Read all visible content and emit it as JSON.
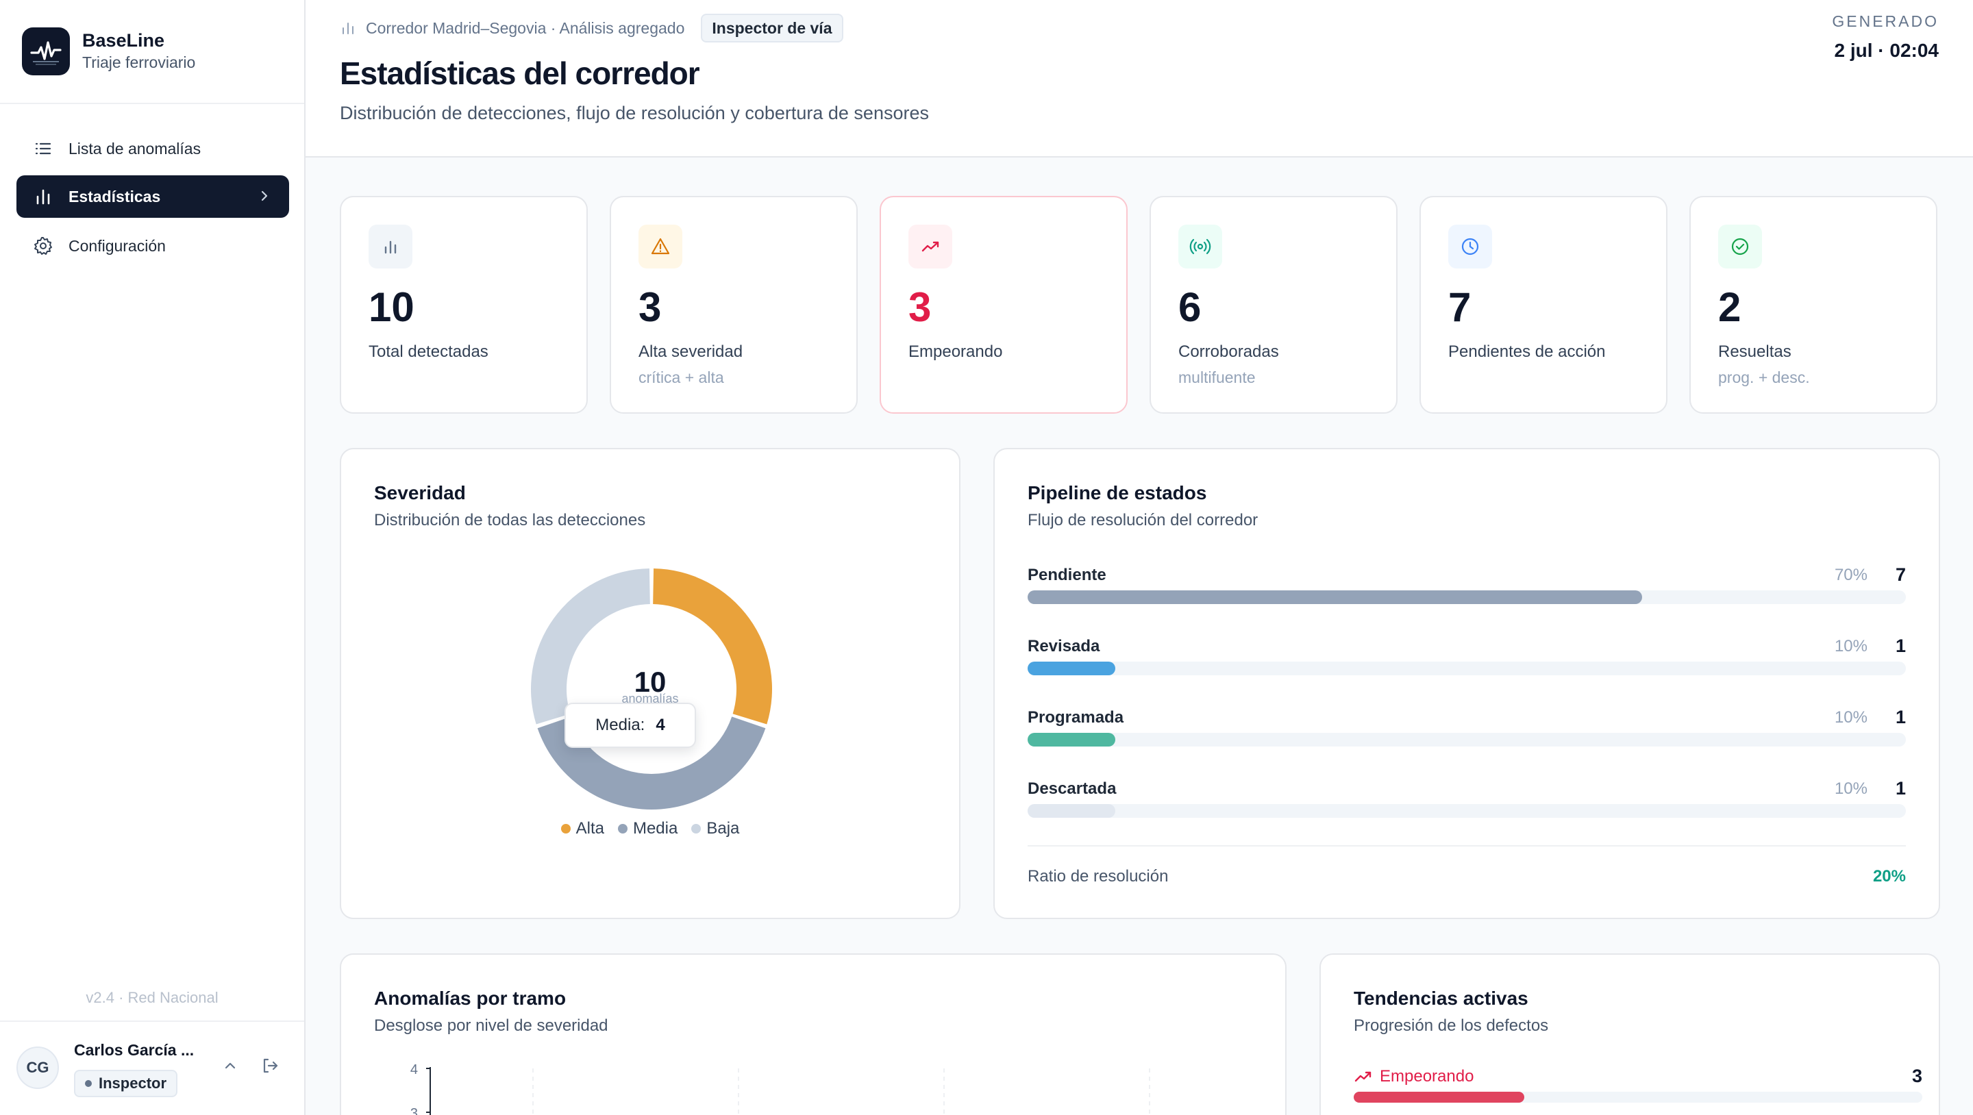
{
  "brand": {
    "title": "BaseLine",
    "subtitle": "Triaje ferroviario"
  },
  "nav": {
    "items": [
      {
        "label": "Lista de anomalías",
        "icon": "list-icon"
      },
      {
        "label": "Estadísticas",
        "icon": "bar-chart-icon",
        "active": true
      },
      {
        "label": "Configuración",
        "icon": "gear-icon"
      }
    ]
  },
  "sidebar": {
    "version": "v2.4 · Red Nacional"
  },
  "user": {
    "initials": "CG",
    "name": "Carlos García ...",
    "role": "Inspector"
  },
  "header": {
    "breadcrumb": "Corredor Madrid–Segovia · Análisis agregado",
    "badge": "Inspector de vía",
    "title": "Estadísticas del corredor",
    "subtitle": "Distribución de detecciones, flujo de resolución y cobertura de sensores",
    "generated_label": "GENERADO",
    "generated_value": "2 jul · 02:04"
  },
  "kpis": [
    {
      "value": "10",
      "label": "Total detectadas",
      "sub": "",
      "icon": "bar-chart-icon",
      "icon_color": "#64748b",
      "icon_bg": "#f1f5f9",
      "value_color": "#0f172a"
    },
    {
      "value": "3",
      "label": "Alta severidad",
      "sub": "crítica + alta",
      "icon": "warning-icon",
      "icon_color": "#d97706",
      "icon_bg": "#fff7e6",
      "value_color": "#0f172a"
    },
    {
      "value": "3",
      "label": "Empeorando",
      "sub": "",
      "icon": "trending-up-icon",
      "icon_color": "#e11d48",
      "icon_bg": "#fff1f3",
      "value_color": "#e11d48"
    },
    {
      "value": "6",
      "label": "Corroboradas",
      "sub": "multifuente",
      "icon": "radio-signal-icon",
      "icon_color": "#0f9f86",
      "icon_bg": "#ecfdf7",
      "value_color": "#0f172a"
    },
    {
      "value": "7",
      "label": "Pendientes de acción",
      "sub": "",
      "icon": "clock-icon",
      "icon_color": "#3b82f6",
      "icon_bg": "#eff6ff",
      "value_color": "#0f172a"
    },
    {
      "value": "2",
      "label": "Resueltas",
      "sub": "prog. + desc.",
      "icon": "check-circle-icon",
      "icon_color": "#16a34a",
      "icon_bg": "#ecfdf5",
      "value_color": "#0f172a"
    }
  ],
  "severity": {
    "title": "Severidad",
    "subtitle": "Distribución de todas las detecciones",
    "center_value": "10",
    "center_label": "anomalías",
    "tooltip": {
      "label": "Media:",
      "value": "4"
    },
    "chart_data": {
      "type": "pie",
      "categories": [
        "Alta",
        "Media",
        "Baja"
      ],
      "values": [
        3,
        4,
        3
      ],
      "colors": [
        "#e9a23b",
        "#94a3b8",
        "#cbd5e1"
      ]
    },
    "legend": [
      {
        "label": "Alta",
        "color": "#e9a23b"
      },
      {
        "label": "Media",
        "color": "#94a3b8"
      },
      {
        "label": "Baja",
        "color": "#cbd5e1"
      }
    ]
  },
  "pipeline": {
    "title": "Pipeline de estados",
    "subtitle": "Flujo de resolución del corredor",
    "rows": [
      {
        "label": "Pendiente",
        "pct": "70%",
        "count": "7",
        "fraction": 0.7,
        "color": "#94a3b8"
      },
      {
        "label": "Revisada",
        "pct": "10%",
        "count": "1",
        "fraction": 0.1,
        "color": "#4aa3e0"
      },
      {
        "label": "Programada",
        "pct": "10%",
        "count": "1",
        "fraction": 0.1,
        "color": "#4fb8a0"
      },
      {
        "label": "Descartada",
        "pct": "10%",
        "count": "1",
        "fraction": 0.1,
        "color": "#e2e8f0"
      }
    ],
    "ratio_label": "Ratio de resolución",
    "ratio_value": "20%"
  },
  "by_section": {
    "title": "Anomalías por tramo",
    "subtitle": "Desglose por nivel de severidad",
    "y_ticks": [
      "4",
      "3"
    ]
  },
  "trends": {
    "title": "Tendencias activas",
    "subtitle": "Progresión de los defectos",
    "rows": [
      {
        "label": "Empeorando",
        "count": "3",
        "fraction": 0.3
      }
    ]
  }
}
